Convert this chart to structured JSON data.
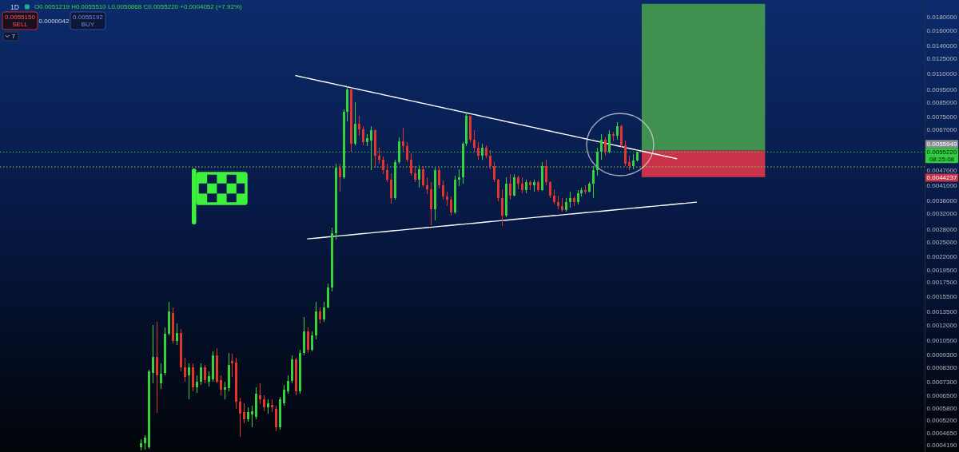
{
  "chart_data": {
    "type": "candlestick",
    "title": "1D",
    "subtitle": "O0.0051219 H0.0055510 L0.0050868 C0.0055220 +0.0004052 (+7.92%)",
    "categories": [
      null,
      null,
      null,
      null,
      null,
      null,
      null,
      null,
      null,
      null,
      null,
      null,
      null,
      null,
      null,
      null,
      null,
      null,
      null,
      null,
      null,
      null,
      null,
      null,
      null,
      null,
      null,
      null,
      null,
      null,
      null,
      null,
      null,
      null,
      null,
      null,
      null,
      null,
      null,
      null,
      null,
      null,
      null,
      null,
      null,
      null,
      null,
      null,
      null,
      null,
      null,
      null,
      null,
      null,
      null,
      null,
      null,
      null,
      null,
      null,
      null,
      null,
      null,
      null,
      null,
      null,
      null,
      null,
      null,
      null,
      null,
      null,
      null,
      null,
      null,
      null,
      null,
      null,
      null,
      null,
      null,
      null,
      null,
      null,
      null,
      null,
      null,
      null,
      null,
      null,
      null,
      null,
      null,
      null,
      null,
      null,
      null,
      null,
      null,
      null,
      null,
      null,
      null,
      null,
      null,
      null,
      null,
      null,
      null,
      null,
      null,
      null,
      null,
      null,
      null,
      null,
      null,
      null,
      null,
      null,
      null,
      null,
      null,
      null,
      null,
      null,
      null,
      null,
      null,
      null,
      null,
      null,
      null,
      null,
      null,
      null,
      null,
      null,
      null,
      null,
      null,
      null,
      null,
      null,
      null,
      null,
      null,
      null,
      null,
      null,
      null,
      null,
      null,
      null,
      null,
      null,
      null,
      null,
      null,
      null,
      null,
      null,
      null,
      null,
      null,
      null,
      null,
      null,
      null,
      null,
      null,
      null,
      null,
      null,
      null,
      null,
      null,
      null,
      null,
      null,
      null,
      null,
      null,
      null,
      null,
      null,
      null,
      null,
      null,
      null,
      null,
      null,
      null,
      null,
      null,
      null,
      null,
      null,
      null,
      null,
      null,
      null,
      null,
      null,
      null,
      null,
      null,
      null,
      null,
      null,
      null,
      null,
      null,
      null,
      null,
      null,
      null,
      null,
      null,
      null,
      null,
      null,
      null,
      null,
      null,
      null,
      null,
      null,
      null,
      null,
      null,
      null,
      null
    ],
    "ohlc": [
      null,
      null,
      null,
      null,
      null,
      null,
      null,
      null,
      null,
      null,
      null,
      null,
      null,
      null,
      null,
      null,
      null,
      null,
      null,
      null,
      null,
      null,
      null,
      null,
      null,
      null,
      null,
      null,
      null,
      null,
      null,
      null,
      null,
      null,
      null,
      [
        0.000412,
        0.000441,
        0.0004,
        0.000427
      ],
      [
        0.000427,
        0.000457,
        0.000403,
        0.000448
      ],
      [
        0.000412,
        0.000813,
        0.000406,
        0.000802
      ],
      [
        0.000791,
        0.001206,
        0.000722,
        0.00091
      ],
      [
        0.00091,
        0.00124,
        0.000557,
        0.000774
      ],
      [
        0.000722,
        0.000861,
        0.000687,
        0.000785
      ],
      [
        0.000791,
        0.001181,
        0.000774,
        0.001116
      ],
      [
        0.001116,
        0.001477,
        0.0011,
        0.001358
      ],
      [
        0.001339,
        0.001407,
        0.001026,
        0.001048
      ],
      [
        0.001048,
        0.001223,
        0.001011,
        0.001124
      ],
      [
        0.001124,
        0.001164,
        0.000802,
        0.000831
      ],
      [
        0.000831,
        0.000904,
        0.000732,
        0.000764
      ],
      [
        0.000774,
        0.000861,
        0.000628,
        0.000831
      ],
      [
        0.000831,
        0.000861,
        0.000673,
        0.000697
      ],
      [
        0.000697,
        0.000774,
        0.000664,
        0.000732
      ],
      [
        0.000732,
        0.000861,
        0.000712,
        0.000831
      ],
      [
        0.000831,
        0.000849,
        0.000722,
        0.000743
      ],
      [
        0.000732,
        0.000802,
        0.000702,
        0.000769
      ],
      [
        0.000748,
        0.000956,
        0.000732,
        0.000923
      ],
      [
        0.000923,
        0.000983,
        0.000722,
        0.000732
      ],
      [
        0.000743,
        0.000774,
        0.00065,
        0.000683
      ],
      [
        0.000683,
        0.000732,
        0.000628,
        0.000697
      ],
      [
        0.000692,
        0.000943,
        0.000673,
        0.000849
      ],
      [
        0.000879,
        0.000936,
        0.000764,
        0.000861
      ],
      [
        0.00087,
        0.000904,
        0.000577,
        0.000615
      ],
      [
        0.000615,
        0.000637,
        0.000451,
        0.000553
      ],
      [
        0.00056,
        0.000606,
        0.000509,
        0.000527
      ],
      [
        0.000527,
        0.000585,
        0.000516,
        0.000561
      ],
      [
        0.00055,
        0.000593,
        0.000491,
        0.000565
      ],
      [
        0.000538,
        0.000697,
        0.000527,
        0.000659
      ],
      [
        0.00065,
        0.000722,
        0.000602,
        0.000628
      ],
      [
        0.000628,
        0.00065,
        0.000565,
        0.000585
      ],
      [
        0.000585,
        0.000628,
        0.000553,
        0.000606
      ],
      [
        0.000598,
        0.000628,
        0.000561,
        0.000585
      ],
      [
        0.000577,
        0.000593,
        0.000474,
        0.000491
      ],
      [
        0.000491,
        0.000641,
        0.00048,
        0.000628
      ],
      [
        0.000606,
        0.000712,
        0.000593,
        0.000683
      ],
      [
        0.000673,
        0.000774,
        0.000659,
        0.000738
      ],
      [
        0.000738,
        0.000923,
        0.000722,
        0.000891
      ],
      [
        0.000891,
        0.000904,
        0.00065,
        0.000673
      ],
      [
        0.000673,
        0.000969,
        0.000659,
        0.000943
      ],
      [
        0.000943,
        0.001293,
        0.000923,
        0.00114
      ],
      [
        0.00114,
        0.001181,
        0.000943,
        0.000969
      ],
      [
        0.000969,
        0.00114,
        0.000956,
        0.0011
      ],
      [
        0.0011,
        0.001477,
        0.001062,
        0.001358
      ],
      [
        0.001358,
        0.001407,
        0.001223,
        0.001266
      ],
      [
        0.001266,
        0.001477,
        0.00124,
        0.001407
      ],
      [
        0.001407,
        0.001737,
        0.001398,
        0.001677
      ],
      [
        0.001677,
        0.00284,
        0.00162,
        0.002703
      ],
      [
        0.002703,
        0.00498,
        0.002555,
        0.004808
      ],
      [
        0.004808,
        0.00498,
        0.003895,
        0.004419
      ],
      [
        0.004419,
        0.008027,
        0.004357,
        0.00786
      ],
      [
        0.00786,
        0.009839,
        0.007225,
        0.009567
      ],
      [
        0.009567,
        0.0097,
        0.005532,
        0.005935
      ],
      [
        0.005935,
        0.008551,
        0.005852,
        0.007074
      ],
      [
        0.007074,
        0.007588,
        0.006367,
        0.006735
      ],
      [
        0.006735,
        0.006927,
        0.005852,
        0.006019
      ],
      [
        0.006019,
        0.006457,
        0.005811,
        0.006234
      ],
      [
        0.0061,
        0.006927,
        0.004708,
        0.006688
      ],
      [
        0.006688,
        0.006735,
        0.004808,
        0.005342
      ],
      [
        0.005342,
        0.00573,
        0.00498,
        0.005158
      ],
      [
        0.005158,
        0.005305,
        0.004545,
        0.004708
      ],
      [
        0.004708,
        0.00498,
        0.004237,
        0.004327
      ],
      [
        0.004327,
        0.004577,
        0.003505,
        0.003682
      ],
      [
        0.003682,
        0.005158,
        0.00363,
        0.00505
      ],
      [
        0.00505,
        0.006278,
        0.00498,
        0.006061
      ],
      [
        0.006061,
        0.00683,
        0.005532,
        0.005811
      ],
      [
        0.005811,
        0.006019,
        0.00505,
        0.005158
      ],
      [
        0.005158,
        0.005456,
        0.004482,
        0.004577
      ],
      [
        0.004577,
        0.004876,
        0.004237,
        0.004327
      ],
      [
        0.004327,
        0.00491,
        0.004034,
        0.004741
      ],
      [
        0.004741,
        0.004876,
        0.004063,
        0.00412
      ],
      [
        0.00412,
        0.004419,
        0.003813,
        0.003978
      ],
      [
        0.003978,
        0.004237,
        0.0029,
        0.003337
      ],
      [
        0.003337,
        0.004808,
        0.003025,
        0.004708
      ],
      [
        0.004708,
        0.004808,
        0.004006,
        0.00412
      ],
      [
        0.00412,
        0.004297,
        0.00363,
        0.003734
      ],
      [
        0.003734,
        0.003895,
        0.003432,
        0.00363
      ],
      [
        0.00363,
        0.003734,
        0.003155,
        0.003245
      ],
      [
        0.003245,
        0.004482,
        0.0032,
        0.004327
      ],
      [
        0.004327,
        0.004741,
        0.004091,
        0.004419
      ],
      [
        0.004419,
        0.006019,
        0.004178,
        0.005935
      ],
      [
        0.005935,
        0.00786,
        0.005811,
        0.007588
      ],
      [
        0.007588,
        0.007588,
        0.006019,
        0.006147
      ],
      [
        0.006147,
        0.006688,
        0.005532,
        0.00573
      ],
      [
        0.00573,
        0.006019,
        0.005158,
        0.005342
      ],
      [
        0.005342,
        0.005935,
        0.005158,
        0.00573
      ],
      [
        0.00573,
        0.005852,
        0.005231,
        0.005342
      ],
      [
        0.005342,
        0.00561,
        0.004741,
        0.004876
      ],
      [
        0.004876,
        0.00505,
        0.004237,
        0.004327
      ],
      [
        0.004327,
        0.004357,
        0.00358,
        0.003682
      ],
      [
        0.003682,
        0.003978,
        0.00288,
        0.003155
      ],
      [
        0.003155,
        0.004419,
        0.003111,
        0.004178
      ],
      [
        0.004178,
        0.004545,
        0.00363,
        0.00376
      ],
      [
        0.00376,
        0.004545,
        0.003734,
        0.004419
      ],
      [
        0.004419,
        0.004482,
        0.003978,
        0.004178
      ],
      [
        0.004178,
        0.004419,
        0.00384,
        0.00395
      ],
      [
        0.00395,
        0.004327,
        0.00384,
        0.004237
      ],
      [
        0.004237,
        0.004297,
        0.00395,
        0.00412
      ],
      [
        0.00412,
        0.004327,
        0.003895,
        0.004237
      ],
      [
        0.004237,
        0.004297,
        0.003895,
        0.00395
      ],
      [
        0.00395,
        0.00505,
        0.003922,
        0.004876
      ],
      [
        0.004876,
        0.005158,
        0.00412,
        0.004237
      ],
      [
        0.004237,
        0.004267,
        0.003682,
        0.00376
      ],
      [
        0.00376,
        0.003978,
        0.003481,
        0.003555
      ],
      [
        0.003555,
        0.00376,
        0.003337,
        0.003432
      ],
      [
        0.003432,
        0.003682,
        0.003267,
        0.003314
      ],
      [
        0.003314,
        0.003682,
        0.003267,
        0.003555
      ],
      [
        0.003555,
        0.003895,
        0.003384,
        0.003682
      ],
      [
        0.003682,
        0.003734,
        0.003432,
        0.003555
      ],
      [
        0.003555,
        0.00395,
        0.003481,
        0.00384
      ],
      [
        0.00384,
        0.004034,
        0.003734,
        0.00395
      ],
      [
        0.00395,
        0.00412,
        0.003813,
        0.003895
      ],
      [
        0.003895,
        0.004237,
        0.003868,
        0.004178
      ],
      [
        0.004178,
        0.004876,
        0.003682,
        0.004708
      ],
      [
        0.004708,
        0.00573,
        0.004482,
        0.005532
      ],
      [
        0.005532,
        0.006457,
        0.005158,
        0.006147
      ],
      [
        0.006147,
        0.006278,
        0.005342,
        0.005532
      ],
      [
        0.005532,
        0.006688,
        0.005456,
        0.006457
      ],
      [
        0.006457,
        0.006595,
        0.006061,
        0.006367
      ],
      [
        0.006367,
        0.007174,
        0.006147,
        0.006927
      ],
      [
        0.006927,
        0.007025,
        0.00573,
        0.005852
      ],
      [
        0.005852,
        0.00609,
        0.004876,
        0.00498
      ],
      [
        0.00505,
        0.005342,
        0.004708,
        0.004876
      ],
      [
        0.004876,
        0.005418,
        0.004741,
        0.005117
      ],
      [
        0.0051219,
        0.005551,
        0.0050868,
        0.005522
      ],
      null,
      null,
      null,
      null,
      null,
      null,
      null,
      null,
      null,
      null,
      null,
      null,
      null,
      null,
      null,
      null,
      null,
      null,
      null,
      null,
      null,
      null,
      null,
      null,
      null,
      null,
      null,
      null,
      null,
      null,
      null,
      null,
      null,
      null,
      null,
      null,
      null,
      null,
      null,
      null,
      null,
      null,
      null,
      null,
      null,
      null,
      null,
      null,
      null,
      null,
      null,
      null,
      null,
      null,
      null,
      null,
      null,
      null,
      null,
      null,
      null,
      null,
      null,
      null,
      null,
      null,
      null,
      null,
      null,
      null,
      null,
      null
    ],
    "series": [
      {
        "type": "line",
        "color": "#ffffff",
        "values": [
          null,
          null,
          null,
          null,
          null,
          null,
          null,
          null,
          null,
          null,
          null,
          null,
          null,
          null,
          null,
          null,
          null,
          null,
          null,
          null,
          null,
          null,
          null,
          null,
          null,
          null,
          null,
          null,
          null,
          null,
          null,
          null,
          null,
          null,
          null,
          null,
          null,
          null,
          null,
          null,
          null,
          null,
          null,
          null,
          null,
          null,
          null,
          null,
          null,
          null,
          null,
          null,
          null,
          null,
          null,
          null,
          null,
          null,
          null,
          null,
          null,
          null,
          null,
          null,
          null,
          null,
          null,
          null,
          null,
          null,
          null,
          null,
          null,
          null,
          0.01081,
          0.01072,
          0.01064,
          0.01056,
          0.01048,
          0.0104,
          0.01032,
          0.01024,
          0.01017,
          0.01009,
          0.01001,
          0.009937,
          0.009862,
          0.009787,
          0.009713,
          0.009639,
          0.009566,
          0.009494,
          0.009422,
          0.00935,
          0.00928,
          0.009209,
          0.009139,
          0.00907,
          0.009001,
          0.008933,
          0.008865,
          0.008798,
          0.008732,
          0.008665,
          0.0086,
          0.008535,
          0.00847,
          0.008406,
          0.008342,
          0.008279,
          0.008216,
          0.008154,
          0.008092,
          0.008031,
          0.00797,
          0.007909,
          0.007849,
          0.00779,
          0.007731,
          0.007672,
          0.007614,
          0.007556,
          0.007499,
          0.007442,
          0.007386,
          0.00733,
          0.007274,
          0.007219,
          0.007164,
          0.00711,
          0.007056,
          0.007003,
          0.00695,
          0.006897,
          0.006845,
          0.006793,
          0.006741,
          0.00669,
          0.00664,
          0.006589,
          0.006539,
          0.00649,
          0.006441,
          0.006392,
          0.006343,
          0.006295,
          0.006248,
          0.0062,
          0.006153,
          0.006107,
          0.00606,
          0.006014,
          0.005969,
          0.005924,
          0.005879,
          0.005834,
          0.00579,
          0.005746,
          0.005702,
          0.005659,
          0.005616,
          0.005574,
          0.005532,
          0.00549,
          0.005448,
          0.005407,
          0.005366,
          0.005325,
          0.005285,
          0.005245,
          0.005205,
          null,
          null,
          null,
          null,
          null,
          null,
          null,
          null,
          null,
          null,
          null,
          null,
          null,
          null,
          null,
          null,
          null,
          null,
          null,
          null,
          null,
          null,
          null,
          null,
          null,
          null,
          null,
          null,
          null,
          null,
          null,
          null,
          null,
          null,
          null,
          null,
          null,
          null,
          null,
          null,
          null,
          null,
          null,
          null,
          null,
          null,
          null,
          null,
          null,
          null,
          null,
          null,
          null,
          null,
          null,
          null,
          null,
          null,
          null,
          null,
          null,
          null
        ]
      },
      {
        "type": "line",
        "color": "#ffffff",
        "values": [
          null,
          null,
          null,
          null,
          null,
          null,
          null,
          null,
          null,
          null,
          null,
          null,
          null,
          null,
          null,
          null,
          null,
          null,
          null,
          null,
          null,
          null,
          null,
          null,
          null,
          null,
          null,
          null,
          null,
          null,
          null,
          null,
          null,
          null,
          null,
          null,
          null,
          null,
          null,
          null,
          null,
          null,
          null,
          null,
          null,
          null,
          null,
          null,
          null,
          null,
          null,
          null,
          null,
          null,
          null,
          null,
          null,
          null,
          null,
          null,
          null,
          null,
          null,
          null,
          null,
          null,
          null,
          null,
          null,
          null,
          null,
          null,
          null,
          null,
          null,
          null,
          null,
          0.002572,
          0.002581,
          0.002589,
          0.002598,
          0.002606,
          0.002615,
          0.002624,
          0.002632,
          0.002641,
          0.00265,
          0.002658,
          0.002667,
          0.002676,
          0.002685,
          0.002693,
          0.002702,
          0.002711,
          0.00272,
          0.002729,
          0.002738,
          0.002747,
          0.002756,
          0.002765,
          0.002774,
          0.002783,
          0.002793,
          0.002802,
          0.002811,
          0.00282,
          0.00283,
          0.002839,
          0.002848,
          0.002858,
          0.002867,
          0.002877,
          0.002886,
          0.002896,
          0.002905,
          0.002915,
          0.002924,
          0.002934,
          0.002944,
          0.002953,
          0.002963,
          0.002973,
          0.002983,
          0.002992,
          0.003002,
          0.003012,
          0.003022,
          0.003032,
          0.003042,
          0.003052,
          0.003062,
          0.003072,
          0.003082,
          0.003092,
          0.003103,
          0.003113,
          0.003123,
          0.003133,
          0.003144,
          0.003154,
          0.003164,
          0.003175,
          0.003185,
          0.003196,
          0.003206,
          0.003217,
          0.003228,
          0.003238,
          0.003249,
          0.00326,
          0.00327,
          0.003281,
          0.003292,
          0.003303,
          0.003314,
          0.003325,
          0.003335,
          0.003347,
          0.003358,
          0.003369,
          0.00338,
          0.003391,
          0.003402,
          0.003413,
          0.003424,
          0.003436,
          0.003447,
          0.003458,
          0.00347,
          0.003481,
          0.003493,
          0.003504,
          0.003516,
          0.003527,
          0.003539,
          0.003551,
          null,
          null,
          null,
          null,
          null,
          null,
          null,
          null,
          null,
          null,
          null,
          null,
          null,
          null,
          null,
          null,
          null,
          null,
          null,
          null,
          null,
          null,
          null,
          null,
          null,
          null,
          null,
          null,
          null,
          null,
          null,
          null,
          null,
          null,
          null,
          null,
          null,
          null,
          null,
          null,
          null,
          null,
          null,
          null,
          null,
          null,
          null,
          null,
          null,
          null,
          null,
          null,
          null,
          null,
          null,
          null,
          null
        ]
      }
    ],
    "ylim": [
      0.000395,
      0.021
    ],
    "log": true,
    "tick_labels": "y",
    "yticks": [
      {
        "value": 0.018,
        "label": "0.0180000"
      },
      {
        "value": 0.016,
        "label": "0.0160000"
      },
      {
        "value": 0.014,
        "label": "0.0140000"
      },
      {
        "value": 0.0125,
        "label": "0.0125000"
      },
      {
        "value": 0.011,
        "label": "0.0110000"
      },
      {
        "value": 0.0095,
        "label": "0.0095000"
      },
      {
        "value": 0.0085,
        "label": "0.0085000"
      },
      {
        "value": 0.0075,
        "label": "0.0075000"
      },
      {
        "value": 0.0067,
        "label": "0.0067000"
      },
      {
        "value": 0.0047,
        "label": "0.0047000"
      },
      {
        "value": 0.0041,
        "label": "0.0041000"
      },
      {
        "value": 0.0036,
        "label": "0.0036000"
      },
      {
        "value": 0.0032,
        "label": "0.0032000"
      },
      {
        "value": 0.0028,
        "label": "0.0028000"
      },
      {
        "value": 0.0025,
        "label": "0.0025000"
      },
      {
        "value": 0.0022,
        "label": "0.0022000"
      },
      {
        "value": 0.00195,
        "label": "0.0019500"
      },
      {
        "value": 0.00175,
        "label": "0.0017500"
      },
      {
        "value": 0.00155,
        "label": "0.0015500"
      },
      {
        "value": 0.00135,
        "label": "0.0013500"
      },
      {
        "value": 0.0012,
        "label": "0.0012000"
      },
      {
        "value": 0.00105,
        "label": "0.0010500"
      },
      {
        "value": 0.00093,
        "label": "0.0009300"
      },
      {
        "value": 0.00083,
        "label": "0.0008300"
      },
      {
        "value": 0.00073,
        "label": "0.0007300"
      },
      {
        "value": 0.00065,
        "label": "0.0006500"
      },
      {
        "value": 0.00058,
        "label": "0.0005800"
      },
      {
        "value": 0.00052,
        "label": "0.0005200"
      },
      {
        "value": 0.000465,
        "label": "0.0004650"
      },
      {
        "value": 0.000419,
        "label": "0.0004190"
      }
    ],
    "ref_lines": [
      {
        "axis": "y",
        "value": 0.005522,
        "label": "0.0055220",
        "color": "#2ecc40",
        "line_style": "dotted"
      },
      {
        "axis": "y",
        "value": 0.00484,
        "color": "#8fd14f",
        "line_style": "dotted"
      }
    ],
    "bands": [
      {
        "axis": "y",
        "from": 0.0055949,
        "to": 0.0203,
        "color": "#40914f"
      },
      {
        "axis": "y",
        "from": 0.0044237,
        "to": 0.0055949,
        "color": "#c9334a"
      }
    ],
    "annotations": [
      "0.0055150",
      "SELL",
      "0.0000042",
      "0.0055192",
      "BUY",
      "7",
      "08:25:08",
      "0.0055949",
      "0.0044237"
    ]
  }
}
